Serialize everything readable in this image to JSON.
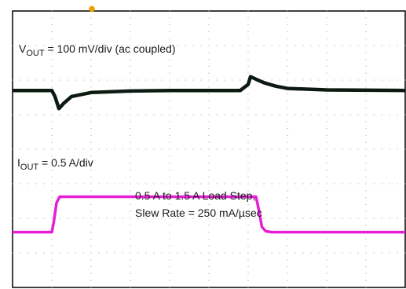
{
  "chart_data": {
    "type": "line",
    "grid": true,
    "grid_divisions": {
      "x": 10,
      "y": 8
    },
    "trigger_marker_color": "#e8a000",
    "series": [
      {
        "label_main": "V",
        "label_sub": "OUT",
        "label_rest": " = 100 mV/div (ac coupled)",
        "color": "#0d1a12",
        "x": [
          0,
          1.0,
          1.08,
          1.18,
          1.3,
          1.5,
          2.0,
          3.0,
          4.0,
          5.0,
          5.8,
          6.0,
          6.06,
          6.2,
          6.4,
          6.7,
          7.0,
          8.0,
          10
        ],
        "y": [
          0,
          0,
          -0.35,
          -1.05,
          -0.75,
          -0.35,
          -0.12,
          -0.03,
          0,
          0,
          0,
          0.35,
          0.8,
          0.65,
          0.45,
          0.25,
          0.12,
          0.03,
          0
        ]
      },
      {
        "label_main": "I",
        "label_sub": "OUT",
        "label_rest": " = 0.5 A/div",
        "color": "#e61ed6",
        "x": [
          0,
          1.0,
          1.05,
          1.12,
          1.2,
          2.0,
          6.2,
          6.28,
          6.35,
          6.45,
          6.6,
          7.0,
          10
        ],
        "y": [
          0,
          0,
          0.6,
          1.7,
          2.05,
          2.05,
          2.05,
          1.2,
          0.3,
          0.05,
          0,
          0,
          0
        ]
      }
    ],
    "annotations": [
      "0.5 A to 1.5 A Load Step,",
      "Slew Rate = 250 mA/µsec"
    ]
  }
}
